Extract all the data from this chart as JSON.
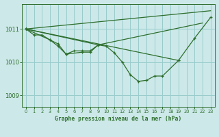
{
  "title": "Graphe pression niveau de la mer (hPa)",
  "bg_color": "#cce8e8",
  "grid_color": "#99cccc",
  "line_color": "#2d6e2d",
  "xlim": [
    -0.5,
    23.5
  ],
  "ylim": [
    1008.65,
    1011.75
  ],
  "yticks": [
    1009,
    1010,
    1011
  ],
  "xticks": [
    0,
    1,
    2,
    3,
    4,
    5,
    6,
    7,
    8,
    9,
    10,
    11,
    12,
    13,
    14,
    15,
    16,
    17,
    18,
    19,
    20,
    21,
    22,
    23
  ],
  "series0_x": [
    0,
    1,
    2,
    3,
    4,
    5,
    6,
    7,
    8,
    9,
    10,
    11,
    12,
    13,
    14,
    15,
    16,
    17,
    19,
    21,
    23
  ],
  "series0_y": [
    1011.0,
    1010.82,
    1010.82,
    1010.67,
    1010.55,
    1010.24,
    1010.34,
    1010.34,
    1010.34,
    1010.52,
    1010.48,
    1010.28,
    1010.0,
    1009.62,
    1009.42,
    1009.45,
    1009.58,
    1009.58,
    1010.05,
    1010.72,
    1011.35
  ],
  "series1_x": [
    0,
    3,
    4,
    5,
    7,
    8,
    9
  ],
  "series1_y": [
    1011.0,
    1010.67,
    1010.48,
    1010.24,
    1010.3,
    1010.3,
    1010.52
  ],
  "fan_line1": [
    [
      0,
      23
    ],
    [
      1011.0,
      1011.55
    ]
  ],
  "fan_line2_x": [
    0,
    9,
    22
  ],
  "fan_line2_y": [
    1011.0,
    1010.52,
    1011.18
  ],
  "fan_line3": [
    [
      0,
      19
    ],
    [
      1011.0,
      1010.05
    ]
  ]
}
